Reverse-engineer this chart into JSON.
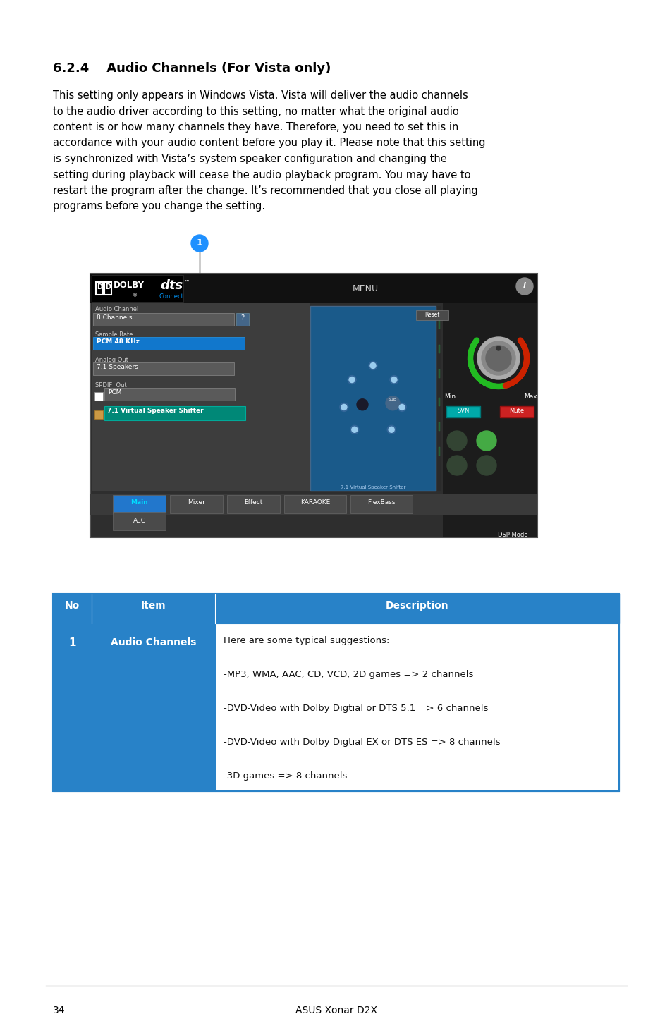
{
  "page_background": "#ffffff",
  "section_title": "6.2.4    Audio Channels (For Vista only)",
  "section_title_fontsize": 13,
  "body_lines": [
    "This setting only appears in Windows Vista. Vista will deliver the audio channels",
    "to the audio driver according to this setting, no matter what the original audio",
    "content is or how many channels they have. Therefore, you need to set this in",
    "accordance with your audio content before you play it. Please note that this setting",
    "is synchronized with Vista’s system speaker configuration and changing the",
    "setting during playback will cease the audio playback program. You may have to",
    "restart the program after the change. It’s recommended that you close all playing",
    "programs before you change the setting."
  ],
  "body_fontsize": 10.5,
  "callout_color": "#1e90ff",
  "callout_number": "1",
  "table_header_bg": "#2882c8",
  "table_row_bg": "#2882c8",
  "table_border_color": "#2882c8",
  "table_headers": [
    "No",
    "Item",
    "Description"
  ],
  "table_row_no": "1",
  "table_row_item": "Audio Channels",
  "table_row_desc": [
    "Here are some typical suggestions:",
    "",
    "-MP3, WMA, AAC, CD, VCD, 2D games => 2 channels",
    "",
    "-DVD-Video with Dolby Digtial or DTS 5.1 => 6 channels",
    "",
    "-DVD-Video with Dolby Digtial EX or DTS ES => 8 channels",
    "",
    "-3D games => 8 channels"
  ],
  "footer_line_color": "#bbbbbb",
  "footer_page_num": "34",
  "footer_text": "ASUS Xonar D2X",
  "footer_fontsize": 10
}
